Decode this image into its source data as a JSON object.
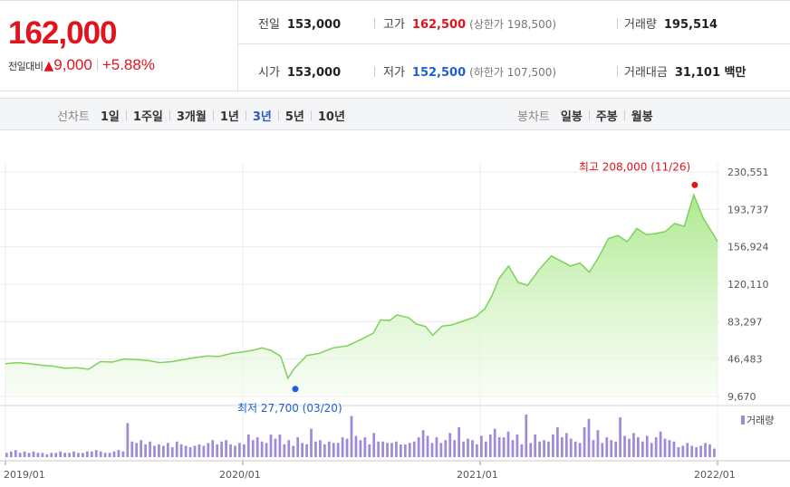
{
  "quote": {
    "price": "162,000",
    "change_label": "전일대비",
    "change_icon": "up-triangle-icon",
    "change_arrow": "▲",
    "change_value": "9,000",
    "change_pct": "+5.88%",
    "prev_label": "전일",
    "prev_value": "153,000",
    "open_label": "시가",
    "open_value": "153,000",
    "high_label": "고가",
    "high_value": "162,500",
    "upper_limit": "(상한가 198,500)",
    "low_label": "저가",
    "low_value": "152,500",
    "lower_limit": "(하한가 107,500)",
    "volume_label": "거래량",
    "volume_value": "195,514",
    "amount_label": "거래대금",
    "amount_value": "31,101 백만"
  },
  "toolbar": {
    "line_title": "선차트",
    "line_periods": [
      "1일",
      "1주일",
      "3개월",
      "1년",
      "3년",
      "5년",
      "10년"
    ],
    "active_period": "3년",
    "candle_title": "봉차트",
    "candle_periods": [
      "일봉",
      "주봉",
      "월봉"
    ]
  },
  "colors": {
    "up": "#e1141e",
    "down": "#1f60d6",
    "line": "#7cd25a",
    "volume": "#9d8ad9"
  },
  "chart_data": {
    "type": "area",
    "x_ticks": [
      "2019/01",
      "2020/01",
      "2021/01",
      "2022/01"
    ],
    "y_ticks": [
      "230,551",
      "193,737",
      "156,924",
      "120,110",
      "83,297",
      "46,483",
      "9,670"
    ],
    "ylim": [
      9670,
      230551
    ],
    "grid": true,
    "max_annotation": "최고 208,000 (11/26)",
    "min_annotation": "최저 27,700 (03/20)",
    "max_value": 208000,
    "min_value": 27700,
    "max_date": "2021-11-26",
    "min_date": "2020-03-20",
    "volume_legend": "거래량",
    "series": [
      {
        "values": [
          [
            2019.0,
            42000
          ],
          [
            2019.05,
            43000
          ],
          [
            2019.1,
            42000
          ],
          [
            2019.15,
            40500
          ],
          [
            2019.2,
            39500
          ],
          [
            2019.25,
            37500
          ],
          [
            2019.3,
            38000
          ],
          [
            2019.35,
            36500
          ],
          [
            2019.4,
            44000
          ],
          [
            2019.45,
            43500
          ],
          [
            2019.5,
            46500
          ],
          [
            2019.55,
            46000
          ],
          [
            2019.6,
            45000
          ],
          [
            2019.65,
            43000
          ],
          [
            2019.7,
            44000
          ],
          [
            2019.75,
            46000
          ],
          [
            2019.8,
            48000
          ],
          [
            2019.85,
            49500
          ],
          [
            2019.9,
            49000
          ],
          [
            2019.95,
            52000
          ],
          [
            2020.0,
            53500
          ],
          [
            2020.04,
            55000
          ],
          [
            2020.08,
            57500
          ],
          [
            2020.12,
            55000
          ],
          [
            2020.16,
            49000
          ],
          [
            2020.19,
            27700
          ],
          [
            2020.22,
            38000
          ],
          [
            2020.27,
            50000
          ],
          [
            2020.32,
            52000
          ],
          [
            2020.38,
            57500
          ],
          [
            2020.44,
            59500
          ],
          [
            2020.5,
            66000
          ],
          [
            2020.55,
            72000
          ],
          [
            2020.58,
            85000
          ],
          [
            2020.62,
            84500
          ],
          [
            2020.65,
            90000
          ],
          [
            2020.7,
            87000
          ],
          [
            2020.73,
            81000
          ],
          [
            2020.77,
            78500
          ],
          [
            2020.8,
            70000
          ],
          [
            2020.84,
            79000
          ],
          [
            2020.88,
            80000
          ],
          [
            2020.93,
            84000
          ],
          [
            2020.98,
            88000
          ],
          [
            2021.02,
            96000
          ],
          [
            2021.05,
            109000
          ],
          [
            2021.08,
            126000
          ],
          [
            2021.12,
            138000
          ],
          [
            2021.16,
            122000
          ],
          [
            2021.2,
            119000
          ],
          [
            2021.25,
            135000
          ],
          [
            2021.3,
            148000
          ],
          [
            2021.34,
            143000
          ],
          [
            2021.38,
            138000
          ],
          [
            2021.42,
            141000
          ],
          [
            2021.46,
            132000
          ],
          [
            2021.5,
            147000
          ],
          [
            2021.54,
            165000
          ],
          [
            2021.58,
            168000
          ],
          [
            2021.62,
            162000
          ],
          [
            2021.66,
            175000
          ],
          [
            2021.7,
            169000
          ],
          [
            2021.74,
            170000
          ],
          [
            2021.78,
            172000
          ],
          [
            2021.82,
            180000
          ],
          [
            2021.86,
            177000
          ],
          [
            2021.9,
            208000
          ],
          [
            2021.94,
            185000
          ],
          [
            2021.98,
            170000
          ],
          [
            2022.0,
            162000
          ]
        ]
      }
    ],
    "volume": [
      3,
      4,
      5,
      3,
      4,
      3,
      4,
      3,
      3,
      2,
      3,
      3,
      4,
      3,
      3,
      4,
      3,
      3,
      4,
      4,
      5,
      4,
      3,
      3,
      4,
      5,
      4,
      24,
      11,
      10,
      12,
      9,
      11,
      8,
      9,
      8,
      10,
      7,
      11,
      9,
      8,
      7,
      8,
      9,
      8,
      10,
      12,
      9,
      11,
      12,
      9,
      8,
      10,
      9,
      16,
      12,
      14,
      11,
      10,
      16,
      13,
      16,
      9,
      12,
      8,
      14,
      10,
      9,
      20,
      11,
      12,
      9,
      11,
      10,
      10,
      14,
      13,
      29,
      15,
      12,
      14,
      9,
      17,
      11,
      11,
      10,
      10,
      11,
      9,
      9,
      10,
      11,
      14,
      19,
      15,
      10,
      14,
      10,
      12,
      17,
      12,
      21,
      11,
      13,
      12,
      9,
      15,
      11,
      16,
      20,
      14,
      14,
      18,
      12,
      16,
      9,
      30,
      10,
      16,
      11,
      12,
      11,
      16,
      21,
      14,
      17,
      13,
      11,
      10,
      21,
      27,
      12,
      19,
      10,
      14,
      12,
      11,
      28,
      15,
      13,
      17,
      14,
      11,
      15,
      10,
      14,
      18,
      13,
      12,
      11,
      7,
      8,
      10,
      8,
      7,
      8,
      10,
      9,
      6
    ]
  }
}
